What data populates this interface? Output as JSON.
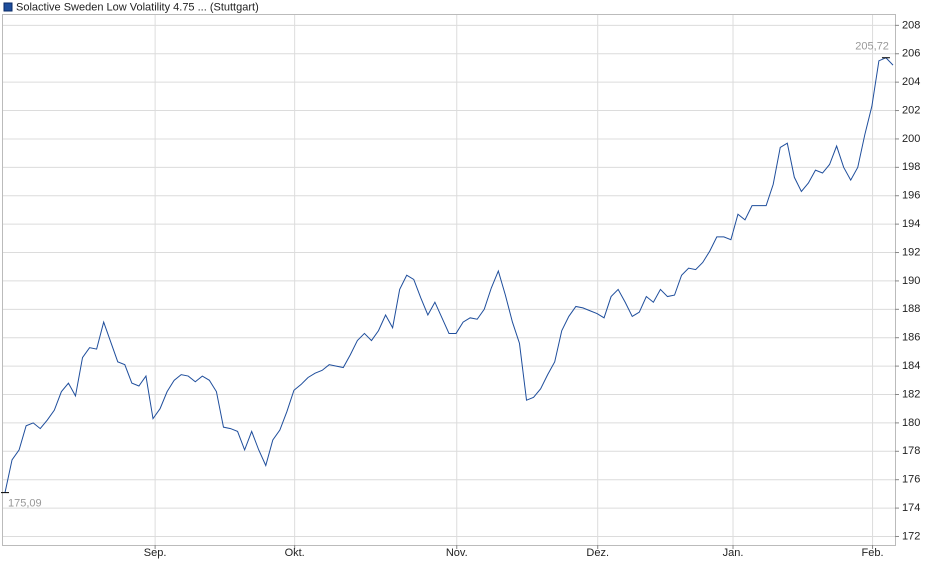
{
  "chart_data": {
    "type": "line",
    "series": [
      {
        "name": "Solactive Sweden Low Volatility 4.75 ... (Stuttgart)",
        "color": "#1f4e9c",
        "values": [
          175.09,
          177.4,
          178.1,
          179.8,
          180.0,
          179.6,
          180.2,
          180.9,
          182.2,
          182.8,
          181.9,
          184.6,
          185.3,
          185.2,
          187.1,
          185.7,
          184.3,
          184.1,
          182.8,
          182.6,
          183.3,
          180.3,
          181.0,
          182.2,
          183.0,
          183.4,
          183.3,
          182.9,
          183.3,
          183.0,
          182.2,
          179.7,
          179.6,
          179.4,
          178.1,
          179.4,
          178.1,
          177.0,
          178.8,
          179.5,
          180.8,
          182.3,
          182.7,
          183.2,
          183.5,
          183.7,
          184.1,
          184.0,
          183.9,
          184.8,
          185.8,
          186.3,
          185.8,
          186.5,
          187.6,
          186.7,
          189.4,
          190.4,
          190.1,
          188.8,
          187.6,
          188.5,
          187.4,
          186.3,
          186.3,
          187.1,
          187.4,
          187.3,
          188.0,
          189.5,
          190.7,
          189.0,
          187.1,
          185.6,
          181.6,
          181.8,
          182.4,
          183.4,
          184.3,
          186.5,
          187.5,
          188.2,
          188.1,
          187.9,
          187.7,
          187.4,
          188.9,
          189.4,
          188.5,
          187.5,
          187.8,
          188.9,
          188.5,
          189.4,
          188.9,
          189.0,
          190.4,
          190.9,
          190.8,
          191.3,
          192.1,
          193.1,
          193.1,
          192.9,
          194.7,
          194.3,
          195.3,
          195.3,
          195.3,
          196.8,
          199.4,
          199.7,
          197.3,
          196.3,
          196.9,
          197.8,
          197.6,
          198.2,
          199.5,
          198.0,
          197.1,
          198.0,
          200.3,
          202.3,
          205.5,
          205.72,
          205.2
        ],
        "value_labels": [
          "175,09",
          null,
          null,
          null,
          null,
          null,
          null,
          null,
          null,
          null,
          null,
          null,
          null,
          null,
          null,
          null,
          null,
          null,
          null,
          null,
          null,
          null,
          null,
          null,
          null,
          null,
          null,
          null,
          null,
          null,
          null,
          null,
          null,
          null,
          null,
          null,
          null,
          null,
          null,
          null,
          null,
          null,
          null,
          null,
          null,
          null,
          null,
          null,
          null,
          null,
          null,
          null,
          null,
          null,
          null,
          null,
          null,
          null,
          null,
          null,
          null,
          null,
          null,
          null,
          null,
          null,
          null,
          null,
          null,
          null,
          null,
          null,
          null,
          null,
          null,
          null,
          null,
          null,
          null,
          null,
          null,
          null,
          null,
          null,
          null,
          null,
          null,
          null,
          null,
          null,
          null,
          null,
          null,
          null,
          null,
          null,
          null,
          null,
          null,
          null,
          null,
          null,
          null,
          null,
          null,
          null,
          null,
          null,
          null,
          null,
          null,
          null,
          null,
          null,
          null,
          null,
          null,
          null,
          null,
          null,
          null,
          null,
          null,
          null,
          null,
          "205,72",
          null
        ]
      }
    ],
    "xlim": [
      0,
      126
    ],
    "xticks": [
      {
        "value": 21.3,
        "label": "Sep."
      },
      {
        "value": 41.1,
        "label": "Okt."
      },
      {
        "value": 64.1,
        "label": "Nov."
      },
      {
        "value": 84.1,
        "label": "Dez."
      },
      {
        "value": 103.3,
        "label": "Jan."
      },
      {
        "value": 123.1,
        "label": "Feb."
      }
    ],
    "ylim": [
      171.4,
      208.8
    ],
    "yticks": [
      172,
      174,
      176,
      178,
      180,
      182,
      184,
      186,
      188,
      190,
      192,
      194,
      196,
      198,
      200,
      202,
      204,
      206,
      208
    ],
    "grid": true
  }
}
